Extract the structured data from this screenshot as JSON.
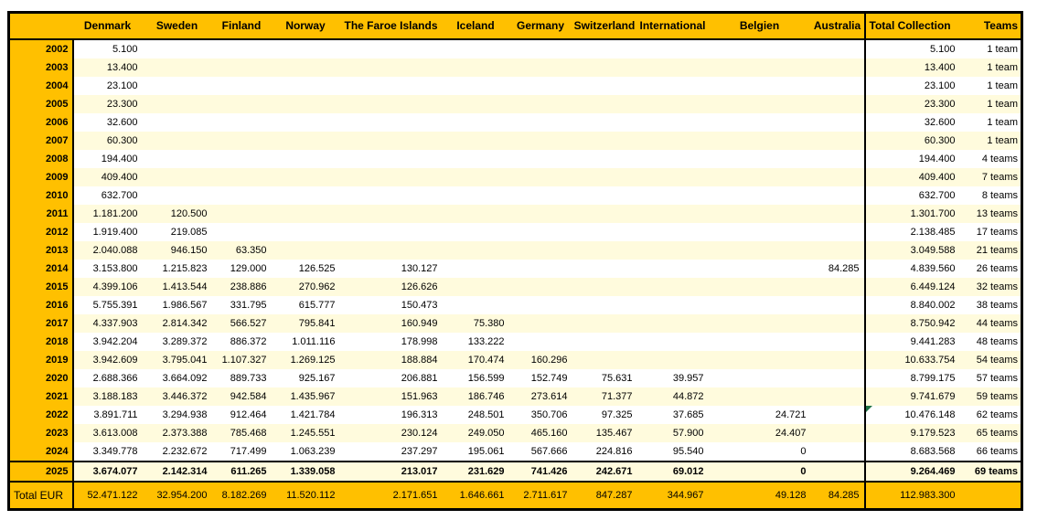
{
  "table": {
    "corner_label": "",
    "columns": [
      "Denmark",
      "Sweden",
      "Finland",
      "Norway",
      "The Faroe Islands",
      "Iceland",
      "Germany",
      "Switzerland",
      "International",
      "Belgien",
      "Australia"
    ],
    "total_collection_label": "Total Collection",
    "teams_label": "Teams",
    "rows": [
      {
        "year": "2002",
        "values": [
          "5.100",
          "",
          "",
          "",
          "",
          "",
          "",
          "",
          "",
          "",
          ""
        ],
        "total": "5.100",
        "teams": "1 team"
      },
      {
        "year": "2003",
        "values": [
          "13.400",
          "",
          "",
          "",
          "",
          "",
          "",
          "",
          "",
          "",
          ""
        ],
        "total": "13.400",
        "teams": "1 team"
      },
      {
        "year": "2004",
        "values": [
          "23.100",
          "",
          "",
          "",
          "",
          "",
          "",
          "",
          "",
          "",
          ""
        ],
        "total": "23.100",
        "teams": "1 team"
      },
      {
        "year": "2005",
        "values": [
          "23.300",
          "",
          "",
          "",
          "",
          "",
          "",
          "",
          "",
          "",
          ""
        ],
        "total": "23.300",
        "teams": "1 team"
      },
      {
        "year": "2006",
        "values": [
          "32.600",
          "",
          "",
          "",
          "",
          "",
          "",
          "",
          "",
          "",
          ""
        ],
        "total": "32.600",
        "teams": "1 team"
      },
      {
        "year": "2007",
        "values": [
          "60.300",
          "",
          "",
          "",
          "",
          "",
          "",
          "",
          "",
          "",
          ""
        ],
        "total": "60.300",
        "teams": "1 team"
      },
      {
        "year": "2008",
        "values": [
          "194.400",
          "",
          "",
          "",
          "",
          "",
          "",
          "",
          "",
          "",
          ""
        ],
        "total": "194.400",
        "teams": "4 teams"
      },
      {
        "year": "2009",
        "values": [
          "409.400",
          "",
          "",
          "",
          "",
          "",
          "",
          "",
          "",
          "",
          ""
        ],
        "total": "409.400",
        "teams": "7 teams"
      },
      {
        "year": "2010",
        "values": [
          "632.700",
          "",
          "",
          "",
          "",
          "",
          "",
          "",
          "",
          "",
          ""
        ],
        "total": "632.700",
        "teams": "8 teams"
      },
      {
        "year": "2011",
        "values": [
          "1.181.200",
          "120.500",
          "",
          "",
          "",
          "",
          "",
          "",
          "",
          "",
          ""
        ],
        "total": "1.301.700",
        "teams": "13 teams"
      },
      {
        "year": "2012",
        "values": [
          "1.919.400",
          "219.085",
          "",
          "",
          "",
          "",
          "",
          "",
          "",
          "",
          ""
        ],
        "total": "2.138.485",
        "teams": "17 teams"
      },
      {
        "year": "2013",
        "values": [
          "2.040.088",
          "946.150",
          "63.350",
          "",
          "",
          "",
          "",
          "",
          "",
          "",
          ""
        ],
        "total": "3.049.588",
        "teams": "21 teams"
      },
      {
        "year": "2014",
        "values": [
          "3.153.800",
          "1.215.823",
          "129.000",
          "126.525",
          "130.127",
          "",
          "",
          "",
          "",
          "",
          "84.285"
        ],
        "total": "4.839.560",
        "teams": "26 teams"
      },
      {
        "year": "2015",
        "values": [
          "4.399.106",
          "1.413.544",
          "238.886",
          "270.962",
          "126.626",
          "",
          "",
          "",
          "",
          "",
          ""
        ],
        "total": "6.449.124",
        "teams": "32 teams"
      },
      {
        "year": "2016",
        "values": [
          "5.755.391",
          "1.986.567",
          "331.795",
          "615.777",
          "150.473",
          "",
          "",
          "",
          "",
          "",
          ""
        ],
        "total": "8.840.002",
        "teams": "38 teams"
      },
      {
        "year": "2017",
        "values": [
          "4.337.903",
          "2.814.342",
          "566.527",
          "795.841",
          "160.949",
          "75.380",
          "",
          "",
          "",
          "",
          ""
        ],
        "total": "8.750.942",
        "teams": "44 teams"
      },
      {
        "year": "2018",
        "values": [
          "3.942.204",
          "3.289.372",
          "886.372",
          "1.011.116",
          "178.998",
          "133.222",
          "",
          "",
          "",
          "",
          ""
        ],
        "total": "9.441.283",
        "teams": "48 teams"
      },
      {
        "year": "2019",
        "values": [
          "3.942.609",
          "3.795.041",
          "1.107.327",
          "1.269.125",
          "188.884",
          "170.474",
          "160.296",
          "",
          "",
          "",
          ""
        ],
        "total": "10.633.754",
        "teams": "54 teams"
      },
      {
        "year": "2020",
        "values": [
          "2.688.366",
          "3.664.092",
          "889.733",
          "925.167",
          "206.881",
          "156.599",
          "152.749",
          "75.631",
          "39.957",
          "",
          ""
        ],
        "total": "8.799.175",
        "teams": "57 teams"
      },
      {
        "year": "2021",
        "values": [
          "3.188.183",
          "3.446.372",
          "942.584",
          "1.435.967",
          "151.963",
          "186.746",
          "273.614",
          "71.377",
          "44.872",
          "",
          ""
        ],
        "total": "9.741.679",
        "teams": "59 teams"
      },
      {
        "year": "2022",
        "values": [
          "3.891.711",
          "3.294.938",
          "912.464",
          "1.421.784",
          "196.313",
          "248.501",
          "350.706",
          "97.325",
          "37.685",
          "24.721",
          ""
        ],
        "total": "10.476.148",
        "teams": "62 teams"
      },
      {
        "year": "2023",
        "values": [
          "3.613.008",
          "2.373.388",
          "785.468",
          "1.245.551",
          "230.124",
          "249.050",
          "465.160",
          "135.467",
          "57.900",
          "24.407",
          ""
        ],
        "total": "9.179.523",
        "teams": "65 teams"
      },
      {
        "year": "2024",
        "values": [
          "3.349.778",
          "2.232.672",
          "717.499",
          "1.063.239",
          "237.297",
          "195.061",
          "567.666",
          "224.816",
          "95.540",
          "0",
          ""
        ],
        "total": "8.683.568",
        "teams": "66 teams"
      },
      {
        "year": "2025",
        "values": [
          "3.674.077",
          "2.142.314",
          "611.265",
          "1.339.058",
          "213.017",
          "231.629",
          "741.426",
          "242.671",
          "69.012",
          "0",
          ""
        ],
        "total": "9.264.469",
        "teams": "69 teams"
      }
    ],
    "final_year": "2025",
    "total_row": {
      "label": "Total EUR",
      "values": [
        "52.471.122",
        "32.954.200",
        "8.182.269",
        "11.520.112",
        "2.171.651",
        "1.646.661",
        "2.711.617",
        "847.287",
        "344.967",
        "49.128",
        "84.285"
      ],
      "total": "112.983.300",
      "teams": ""
    }
  },
  "annotations": {
    "comment_marker_year": "2022",
    "comment_marker_column": "total"
  },
  "colors": {
    "header_bg": "#FFC000",
    "band_row_bg": "#FFFBDD",
    "border": "#000000",
    "comment_green": "#1E7145",
    "text": "#000000"
  }
}
